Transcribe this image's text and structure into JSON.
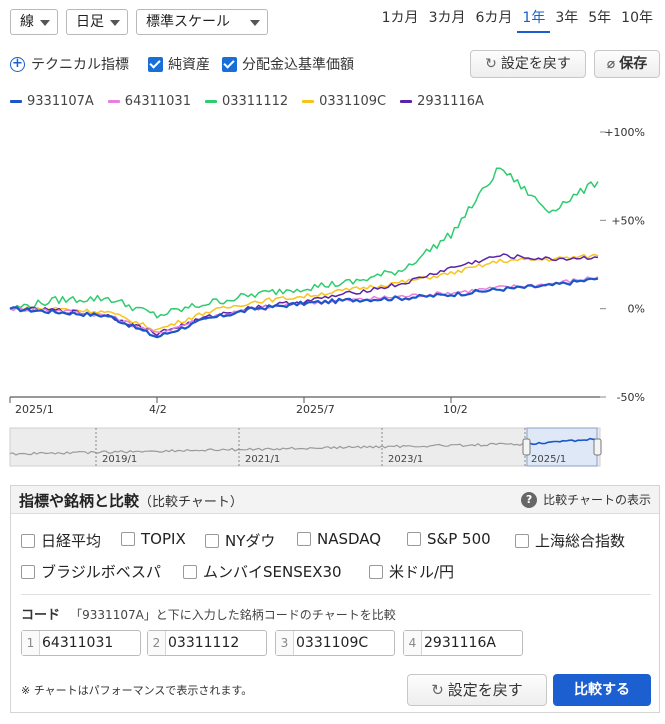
{
  "toolbar": {
    "chart_type": "線",
    "interval": "日足",
    "scale": "標準スケール",
    "periods": [
      "1カ月",
      "3カ月",
      "6カ月",
      "1年",
      "3年",
      "5年",
      "10年"
    ],
    "active_period": "1年"
  },
  "options": {
    "technical": "テクニカル指標",
    "net_assets": "純資産",
    "reinvest": "分配金込基準価額",
    "reset": "設定を戻す",
    "save": "保存"
  },
  "colors": {
    "s1": "#1a56c8",
    "s2": "#e87ee0",
    "s3": "#2fcc6f",
    "s4": "#f6c41a",
    "s5": "#5a24a8",
    "accent": "#1a5fd0"
  },
  "chart_data": {
    "type": "line",
    "x": [
      "2025/1",
      "2025/2",
      "2025/3",
      "4/2",
      "2025/5",
      "2025/6",
      "2025/7",
      "2025/8",
      "2025/9",
      "10/2",
      "2025/11",
      "2025/12",
      "2026/1"
    ],
    "xtick_labels": [
      "2025/1",
      "4/2",
      "2025/7",
      "10/2"
    ],
    "ytick_labels": [
      "+100%",
      "+50%",
      "0%",
      "-50%"
    ],
    "ylim": [
      -50,
      100
    ],
    "grid": false,
    "legend_position": "top-left",
    "series": [
      {
        "name": "9331107A",
        "color": "#1a56c8",
        "values": [
          0,
          -2,
          -4,
          -16,
          -6,
          0,
          3,
          5,
          6,
          8,
          11,
          13,
          17
        ]
      },
      {
        "name": "64311031",
        "color": "#e87ee0",
        "values": [
          0,
          -1,
          -4,
          -14,
          -5,
          0,
          3,
          5,
          7,
          9,
          12,
          14,
          18
        ]
      },
      {
        "name": "03311112",
        "color": "#2fcc6f",
        "values": [
          0,
          5,
          6,
          -4,
          3,
          8,
          12,
          15,
          22,
          42,
          80,
          55,
          72
        ]
      },
      {
        "name": "0331109C",
        "color": "#f6c41a",
        "values": [
          0,
          0,
          -2,
          -12,
          -2,
          4,
          7,
          11,
          15,
          20,
          27,
          28,
          30
        ]
      },
      {
        "name": "2931116A",
        "color": "#5a24a8",
        "values": [
          0,
          -1,
          -4,
          -14,
          -5,
          1,
          4,
          9,
          14,
          23,
          30,
          28,
          29
        ]
      }
    ]
  },
  "navigator": {
    "labels": [
      "2019/1",
      "2021/1",
      "2023/1",
      "2025/1"
    ]
  },
  "compare": {
    "title": "指標や銘柄と比較",
    "subtitle": "（比較チャート）",
    "help": "比較チャートの表示",
    "indices": [
      "日経平均",
      "TOPIX",
      "NYダウ",
      "NASDAQ",
      "S&P 500",
      "上海総合指数",
      "ブラジルボベスパ",
      "ムンバイSENSEX30",
      "米ドル/円"
    ],
    "code_label": "コード",
    "code_note": "「9331107A」と下に入力した銘柄コードのチャートを比較",
    "codes": [
      {
        "num": "1",
        "value": "64311031"
      },
      {
        "num": "2",
        "value": "03311112"
      },
      {
        "num": "3",
        "value": "0331109C"
      },
      {
        "num": "4",
        "value": "2931116A"
      }
    ],
    "note": "※ チャートはパフォーマンスで表示されます。",
    "reset": "設定を戻す",
    "submit": "比較する"
  }
}
